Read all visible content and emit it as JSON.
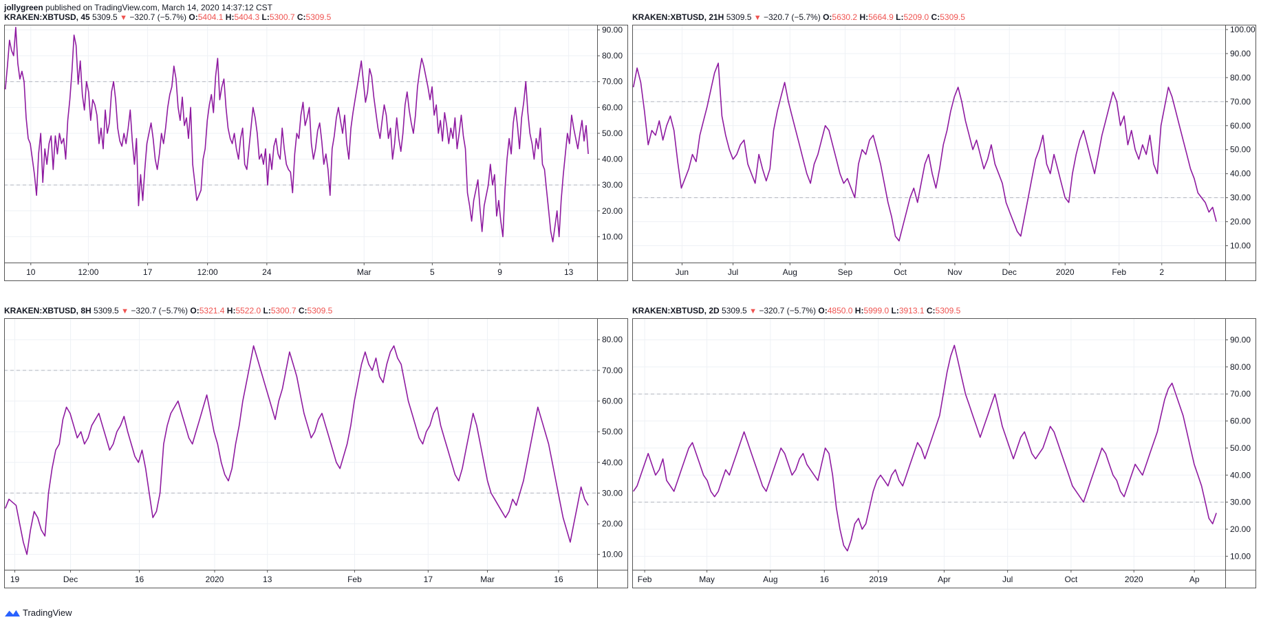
{
  "header": {
    "author": "jollygreen",
    "published": "published on TradingView.com, March 14, 2020 14:37:12 CST"
  },
  "footer": {
    "brand": "TradingView"
  },
  "colors": {
    "line": "#8e1aa0",
    "negative": "#ef5350",
    "grid": "#eef1f5",
    "level": "#b2b5be",
    "frame": "#555555"
  },
  "panels": [
    {
      "symbol": "KRAKEN:XBTUSD, 45",
      "last": "5309.5",
      "change": "−320.7 (−5.7%)",
      "open": "5404.1",
      "high": "5404.3",
      "low": "5300.7",
      "close": "5309.5"
    },
    {
      "symbol": "KRAKEN:XBTUSD, 21H",
      "last": "5309.5",
      "change": "−320.7 (−5.7%)",
      "open": "5630.2",
      "high": "5664.9",
      "low": "5209.0",
      "close": "5309.5"
    },
    {
      "symbol": "KRAKEN:XBTUSD, 8H",
      "last": "5309.5",
      "change": "−320.7 (−5.7%)",
      "open": "5321.4",
      "high": "5522.0",
      "low": "5300.7",
      "close": "5309.5"
    },
    {
      "symbol": "KRAKEN:XBTUSD, 2D",
      "last": "5309.5",
      "change": "−320.7 (−5.7%)",
      "open": "4850.0",
      "high": "5999.0",
      "low": "3913.1",
      "close": "5309.5"
    }
  ],
  "chart_data": [
    {
      "type": "line",
      "ylim": [
        0,
        92
      ],
      "yticks": [
        "10.00",
        "20.00",
        "30.00",
        "40.00",
        "50.00",
        "60.00",
        "70.00",
        "80.00",
        "90.00"
      ],
      "levels": [
        30,
        70
      ],
      "xticks": [
        "10",
        "12:00",
        "17",
        "12:00",
        "24",
        "Mar",
        "5",
        "9",
        "13"
      ],
      "xtick_pos": [
        0.045,
        0.142,
        0.242,
        0.343,
        0.443,
        0.607,
        0.722,
        0.836,
        0.952
      ],
      "grid": true,
      "y": [
        67,
        76,
        86,
        82,
        80,
        91,
        77,
        71,
        74,
        70,
        56,
        48,
        46,
        40,
        34,
        26,
        42,
        50,
        31,
        44,
        38,
        46,
        49,
        36,
        49,
        42,
        50,
        46,
        48,
        40,
        55,
        63,
        74,
        88,
        84,
        69,
        78,
        65,
        59,
        70,
        66,
        55,
        63,
        61,
        57,
        46,
        52,
        44,
        59,
        50,
        54,
        66,
        70,
        63,
        52,
        47,
        45,
        50,
        46,
        52,
        59,
        47,
        38,
        48,
        22,
        34,
        24,
        36,
        46,
        50,
        54,
        48,
        40,
        36,
        42,
        50,
        46,
        52,
        60,
        65,
        68,
        76,
        71,
        60,
        55,
        64,
        53,
        56,
        48,
        60,
        38,
        31,
        24,
        26,
        28,
        40,
        44,
        55,
        61,
        65,
        58,
        72,
        79,
        63,
        68,
        71,
        60,
        52,
        48,
        46,
        50,
        44,
        40,
        48,
        52,
        38,
        36,
        44,
        52,
        60,
        56,
        50,
        40,
        42,
        38,
        44,
        30,
        42,
        36,
        45,
        48,
        42,
        40,
        52,
        44,
        38,
        36,
        35,
        27,
        42,
        50,
        48,
        57,
        62,
        53,
        56,
        60,
        46,
        40,
        44,
        51,
        54,
        47,
        38,
        42,
        36,
        26,
        44,
        49,
        56,
        60,
        55,
        50,
        57,
        46,
        40,
        52,
        58,
        63,
        68,
        73,
        78,
        70,
        62,
        66,
        75,
        72,
        64,
        58,
        52,
        48,
        55,
        61,
        57,
        48,
        52,
        40,
        46,
        56,
        48,
        43,
        50,
        61,
        66,
        59,
        54,
        50,
        57,
        68,
        74,
        79,
        76,
        72,
        68,
        63,
        68,
        57,
        61,
        50,
        55,
        47,
        58,
        53,
        46,
        52,
        48,
        56,
        44,
        50,
        57,
        49,
        44,
        27,
        22,
        16,
        24,
        28,
        32,
        21,
        12,
        22,
        26,
        30,
        38,
        30,
        34,
        18,
        24,
        16,
        10,
        28,
        40,
        48,
        42,
        54,
        60,
        53,
        44,
        56,
        62,
        70,
        58,
        50,
        46,
        40,
        48,
        44,
        52,
        38,
        36,
        28,
        20,
        12,
        8,
        14,
        20,
        10,
        24,
        34,
        42,
        50,
        46,
        57,
        52,
        48,
        44,
        50,
        55,
        47,
        53,
        42
      ]
    },
    {
      "type": "line",
      "ylim": [
        3,
        102
      ],
      "yticks": [
        "10.00",
        "20.00",
        "30.00",
        "40.00",
        "50.00",
        "60.00",
        "70.00",
        "80.00",
        "90.00",
        "100.00"
      ],
      "levels": [
        30,
        70
      ],
      "xticks": [
        "Jun",
        "Jul",
        "Aug",
        "Sep",
        "Oct",
        "Nov",
        "Dec",
        "2020",
        "Feb",
        "2"
      ],
      "xtick_pos": [
        0.084,
        0.17,
        0.266,
        0.359,
        0.452,
        0.544,
        0.636,
        0.73,
        0.821,
        0.893
      ],
      "grid": true,
      "y": [
        76,
        84,
        78,
        66,
        52,
        58,
        56,
        62,
        54,
        60,
        64,
        58,
        45,
        34,
        38,
        42,
        48,
        45,
        56,
        62,
        68,
        75,
        82,
        86,
        64,
        56,
        50,
        46,
        48,
        52,
        54,
        44,
        40,
        36,
        48,
        42,
        37,
        42,
        58,
        66,
        72,
        78,
        70,
        64,
        58,
        52,
        46,
        40,
        36,
        44,
        48,
        54,
        60,
        58,
        52,
        46,
        40,
        36,
        38,
        34,
        30,
        44,
        50,
        48,
        54,
        56,
        50,
        44,
        36,
        28,
        22,
        14,
        12,
        18,
        24,
        30,
        34,
        28,
        36,
        44,
        48,
        40,
        34,
        42,
        52,
        58,
        66,
        72,
        76,
        70,
        62,
        56,
        50,
        54,
        48,
        42,
        46,
        52,
        44,
        40,
        36,
        28,
        24,
        20,
        16,
        14,
        22,
        30,
        38,
        46,
        50,
        56,
        44,
        40,
        48,
        42,
        36,
        30,
        28,
        40,
        48,
        54,
        58,
        52,
        46,
        40,
        48,
        56,
        62,
        68,
        74,
        70,
        60,
        64,
        52,
        58,
        50,
        46,
        52,
        48,
        56,
        44,
        40,
        60,
        68,
        76,
        72,
        66,
        60,
        54,
        48,
        42,
        38,
        32,
        30,
        28,
        24,
        26,
        20
      ]
    },
    {
      "type": "line",
      "ylim": [
        5,
        87
      ],
      "yticks": [
        "10.00",
        "20.00",
        "30.00",
        "40.00",
        "50.00",
        "60.00",
        "70.00",
        "80.00"
      ],
      "levels": [
        30,
        70
      ],
      "xticks": [
        "19",
        "Dec",
        "16",
        "2020",
        "13",
        "Feb",
        "17",
        "Mar",
        "16"
      ],
      "xtick_pos": [
        0.018,
        0.112,
        0.228,
        0.355,
        0.444,
        0.591,
        0.715,
        0.815,
        0.935
      ],
      "grid": true,
      "y": [
        25,
        28,
        27,
        26,
        20,
        14,
        10,
        18,
        24,
        22,
        18,
        16,
        30,
        38,
        44,
        46,
        54,
        58,
        56,
        52,
        48,
        50,
        46,
        48,
        52,
        54,
        56,
        52,
        48,
        44,
        46,
        50,
        52,
        55,
        50,
        46,
        42,
        40,
        44,
        38,
        30,
        22,
        24,
        30,
        46,
        52,
        56,
        58,
        60,
        56,
        52,
        48,
        46,
        50,
        54,
        58,
        62,
        56,
        50,
        46,
        40,
        36,
        34,
        38,
        46,
        52,
        60,
        66,
        72,
        78,
        74,
        70,
        66,
        62,
        58,
        54,
        60,
        64,
        70,
        76,
        72,
        68,
        62,
        56,
        52,
        48,
        50,
        54,
        56,
        52,
        48,
        44,
        40,
        38,
        42,
        46,
        52,
        60,
        66,
        72,
        76,
        72,
        70,
        74,
        68,
        66,
        72,
        76,
        78,
        74,
        72,
        66,
        60,
        56,
        52,
        48,
        46,
        50,
        52,
        56,
        58,
        52,
        48,
        44,
        40,
        36,
        34,
        38,
        44,
        50,
        56,
        52,
        46,
        40,
        34,
        30,
        28,
        26,
        24,
        22,
        24,
        28,
        26,
        30,
        34,
        40,
        46,
        52,
        58,
        54,
        50,
        46,
        40,
        34,
        28,
        22,
        18,
        14,
        20,
        26,
        32,
        28,
        26
      ]
    },
    {
      "type": "line",
      "ylim": [
        5,
        98
      ],
      "yticks": [
        "10.00",
        "20.00",
        "30.00",
        "40.00",
        "50.00",
        "60.00",
        "70.00",
        "80.00",
        "90.00"
      ],
      "levels": [
        30,
        70
      ],
      "xticks": [
        "Feb",
        "May",
        "Aug",
        "16",
        "2019",
        "Apr",
        "Jul",
        "Oct",
        "2020",
        "Ap"
      ],
      "xtick_pos": [
        0.021,
        0.126,
        0.233,
        0.324,
        0.415,
        0.526,
        0.633,
        0.74,
        0.846,
        0.948
      ],
      "grid": true,
      "y": [
        34,
        36,
        40,
        44,
        48,
        44,
        40,
        42,
        46,
        38,
        36,
        34,
        38,
        42,
        46,
        50,
        52,
        48,
        44,
        40,
        38,
        34,
        32,
        34,
        38,
        42,
        40,
        44,
        48,
        52,
        56,
        52,
        48,
        44,
        40,
        36,
        34,
        38,
        42,
        46,
        50,
        48,
        44,
        40,
        42,
        46,
        48,
        44,
        42,
        40,
        38,
        44,
        50,
        48,
        40,
        28,
        20,
        14,
        12,
        16,
        22,
        24,
        20,
        22,
        28,
        34,
        38,
        40,
        38,
        36,
        40,
        42,
        38,
        36,
        40,
        44,
        48,
        52,
        50,
        46,
        50,
        54,
        58,
        62,
        70,
        78,
        84,
        88,
        82,
        76,
        70,
        66,
        62,
        58,
        54,
        58,
        62,
        66,
        70,
        64,
        58,
        54,
        50,
        46,
        50,
        54,
        56,
        52,
        48,
        46,
        48,
        50,
        54,
        58,
        56,
        52,
        48,
        44,
        40,
        36,
        34,
        32,
        30,
        34,
        38,
        42,
        46,
        50,
        48,
        44,
        40,
        38,
        34,
        32,
        36,
        40,
        44,
        42,
        40,
        44,
        48,
        52,
        56,
        62,
        68,
        72,
        74,
        70,
        66,
        62,
        56,
        50,
        44,
        40,
        36,
        30,
        24,
        22,
        26
      ]
    }
  ]
}
